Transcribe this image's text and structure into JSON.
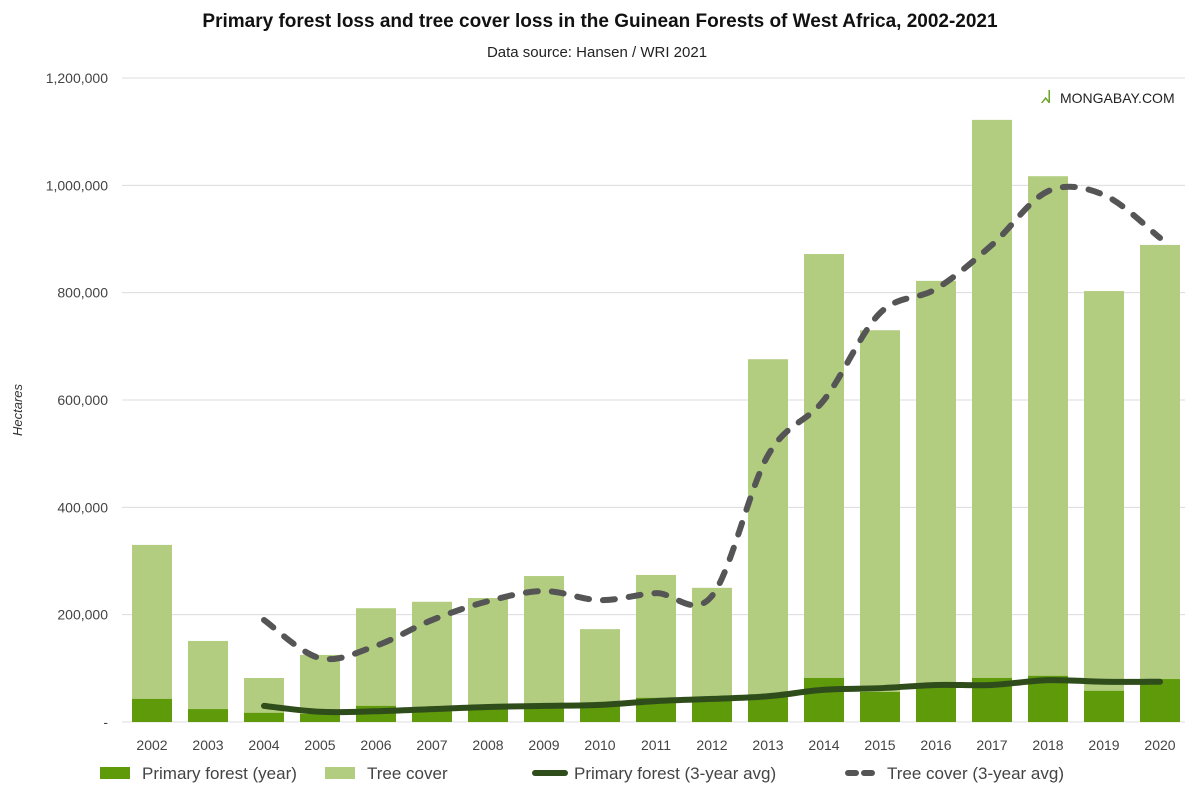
{
  "chart_data": {
    "type": "bar",
    "title": "Primary forest loss and tree cover loss in the Guinean Forests of West Africa, 2002-2021",
    "subtitle": "Data source: Hansen / WRI 2021",
    "watermark": "MONGABAY.COM",
    "xlabel": "",
    "ylabel": "Hectares",
    "ylim": [
      0,
      1200000
    ],
    "yticks": [
      0,
      200000,
      400000,
      600000,
      800000,
      1000000,
      1200000
    ],
    "ytick_labels": [
      "-",
      "200,000",
      "400,000",
      "600,000",
      "800,000",
      "1,000,000",
      "1,200,000"
    ],
    "grid": true,
    "legend_position": "bottom",
    "categories": [
      "2002",
      "2003",
      "2004",
      "2005",
      "2006",
      "2007",
      "2008",
      "2009",
      "2010",
      "2011",
      "2012",
      "2013",
      "2014",
      "2015",
      "2016",
      "2017",
      "2018",
      "2019",
      "2020"
    ],
    "series": [
      {
        "name": "Tree cover",
        "kind": "bar",
        "color": "#b2cd80",
        "values": [
          330000,
          151000,
          82000,
          125000,
          212000,
          224000,
          231000,
          272000,
          173000,
          274000,
          250000,
          676000,
          872000,
          730000,
          822000,
          1122000,
          1017000,
          803000,
          889000
        ]
      },
      {
        "name": "Primary forest (year)",
        "kind": "bar",
        "color": "#5f9a0b",
        "values": [
          43000,
          24000,
          17000,
          15000,
          30000,
          26000,
          30000,
          30000,
          30000,
          45000,
          45000,
          47000,
          82000,
          56000,
          65000,
          82000,
          86000,
          58000,
          80000
        ]
      },
      {
        "name": "Primary forest (3-year avg)",
        "kind": "line",
        "color": "#2f4d1a",
        "values": [
          null,
          null,
          30000,
          19000,
          20000,
          24000,
          28000,
          30000,
          32000,
          39000,
          43000,
          48000,
          60000,
          63000,
          69000,
          69000,
          78000,
          75000,
          75000
        ]
      },
      {
        "name": "Tree cover (3-year avg)",
        "kind": "dashed-line",
        "color": "#555555",
        "values": [
          null,
          null,
          190000,
          119000,
          142000,
          190000,
          225000,
          244000,
          227000,
          240000,
          235000,
          497000,
          600000,
          762000,
          807000,
          889000,
          989000,
          982000,
          902000
        ]
      }
    ]
  }
}
